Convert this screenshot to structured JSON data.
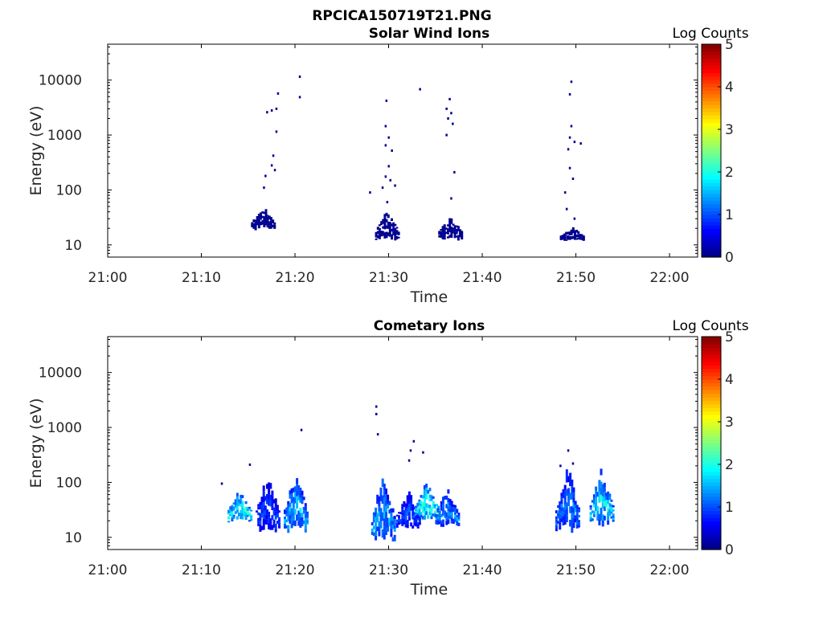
{
  "figure_title": "RPCICA150719T21.PNG",
  "chart_data": [
    {
      "type": "heatmap",
      "title": "Solar Wind Ions",
      "xlabel": "Time",
      "ylabel": "Energy (eV)",
      "y_scale": "log",
      "ylim": [
        6,
        45000
      ],
      "xlim": [
        "21:00",
        "22:03"
      ],
      "x_ticks": [
        "21:00",
        "21:10",
        "21:20",
        "21:30",
        "21:40",
        "21:50",
        "22:00"
      ],
      "y_ticks": [
        "10",
        "100",
        "1000",
        "10000"
      ],
      "colorbar": {
        "label": "Log Counts",
        "range": [
          0,
          5
        ],
        "ticks": [
          "0",
          "1",
          "2",
          "3",
          "4",
          "5"
        ],
        "colormap": "jet"
      },
      "clusters": [
        {
          "time": "21:16:30",
          "e_min": 18,
          "e_max": 55,
          "log_counts": 0.1
        },
        {
          "time": "21:29:45",
          "e_min": 12,
          "e_max": 45,
          "log_counts": 0.1
        },
        {
          "time": "21:36:30",
          "e_min": 12,
          "e_max": 38,
          "log_counts": 0.1
        },
        {
          "time": "21:49:30",
          "e_min": 12,
          "e_max": 22,
          "log_counts": 0.1
        }
      ],
      "points": [
        [
          "21:17:00",
          2600
        ],
        [
          "21:17:30",
          2800
        ],
        [
          "21:18:00",
          3000
        ],
        [
          "21:18:10",
          5700
        ],
        [
          "21:18:00",
          1150
        ],
        [
          "21:17:40",
          420
        ],
        [
          "21:17:30",
          280
        ],
        [
          "21:17:50",
          230
        ],
        [
          "21:16:50",
          180
        ],
        [
          "21:16:40",
          110
        ],
        [
          "21:20:30",
          11500
        ],
        [
          "21:20:30",
          4900
        ],
        [
          "21:29:45",
          4200
        ],
        [
          "21:29:40",
          1450
        ],
        [
          "21:30:00",
          900
        ],
        [
          "21:29:40",
          650
        ],
        [
          "21:30:20",
          520
        ],
        [
          "21:30:00",
          270
        ],
        [
          "21:29:40",
          175
        ],
        [
          "21:30:10",
          150
        ],
        [
          "21:29:20",
          110
        ],
        [
          "21:30:40",
          120
        ],
        [
          "21:28:00",
          90
        ],
        [
          "21:29:50",
          60
        ],
        [
          "21:33:20",
          6800
        ],
        [
          "21:36:30",
          4500
        ],
        [
          "21:36:10",
          3000
        ],
        [
          "21:36:40",
          2500
        ],
        [
          "21:36:20",
          2000
        ],
        [
          "21:36:50",
          1600
        ],
        [
          "21:36:10",
          1000
        ],
        [
          "21:37:00",
          210
        ],
        [
          "21:36:40",
          70
        ],
        [
          "21:49:30",
          9300
        ],
        [
          "21:49:20",
          5500
        ],
        [
          "21:49:30",
          1450
        ],
        [
          "21:49:20",
          900
        ],
        [
          "21:49:50",
          750
        ],
        [
          "21:50:30",
          700
        ],
        [
          "21:49:10",
          550
        ],
        [
          "21:49:20",
          250
        ],
        [
          "21:49:40",
          160
        ],
        [
          "21:48:50",
          90
        ],
        [
          "21:49:00",
          45
        ],
        [
          "21:49:50",
          30
        ]
      ]
    },
    {
      "type": "heatmap",
      "title": "Cometary Ions",
      "xlabel": "Time",
      "ylabel": "Energy (eV)",
      "y_scale": "log",
      "ylim": [
        6,
        45000
      ],
      "xlim": [
        "21:00",
        "22:03"
      ],
      "x_ticks": [
        "21:00",
        "21:10",
        "21:20",
        "21:30",
        "21:40",
        "21:50",
        "22:00"
      ],
      "y_ticks": [
        "10",
        "100",
        "1000",
        "10000"
      ],
      "colorbar": {
        "label": "Log Counts",
        "range": [
          0,
          5
        ],
        "ticks": [
          "0",
          "1",
          "2",
          "3",
          "4",
          "5"
        ],
        "colormap": "jet"
      },
      "clusters": [
        {
          "time": "21:14:00",
          "e_min": 18,
          "e_max": 90,
          "log_counts": 2.0
        },
        {
          "time": "21:17:00",
          "e_min": 12,
          "e_max": 180,
          "log_counts": 1.0
        },
        {
          "time": "21:20:00",
          "e_min": 12,
          "e_max": 200,
          "log_counts": 1.6
        },
        {
          "time": "21:29:20",
          "e_min": 8,
          "e_max": 200,
          "log_counts": 1.5
        },
        {
          "time": "21:32:00",
          "e_min": 14,
          "e_max": 80,
          "log_counts": 1.0
        },
        {
          "time": "21:34:00",
          "e_min": 20,
          "e_max": 120,
          "log_counts": 2.2
        },
        {
          "time": "21:36:10",
          "e_min": 15,
          "e_max": 90,
          "log_counts": 1.4
        },
        {
          "time": "21:49:00",
          "e_min": 12,
          "e_max": 260,
          "log_counts": 1.3
        },
        {
          "time": "21:52:40",
          "e_min": 15,
          "e_max": 220,
          "log_counts": 1.8
        }
      ],
      "points": [
        [
          "21:20:40",
          900
        ],
        [
          "21:28:40",
          2400
        ],
        [
          "21:28:40",
          1750
        ],
        [
          "21:28:50",
          750
        ],
        [
          "21:32:40",
          560
        ],
        [
          "21:32:20",
          380
        ],
        [
          "21:33:40",
          350
        ],
        [
          "21:32:10",
          250
        ],
        [
          "21:12:10",
          95
        ],
        [
          "21:15:10",
          210
        ],
        [
          "21:48:20",
          200
        ],
        [
          "21:49:40",
          220
        ],
        [
          "21:49:10",
          380
        ]
      ]
    }
  ]
}
